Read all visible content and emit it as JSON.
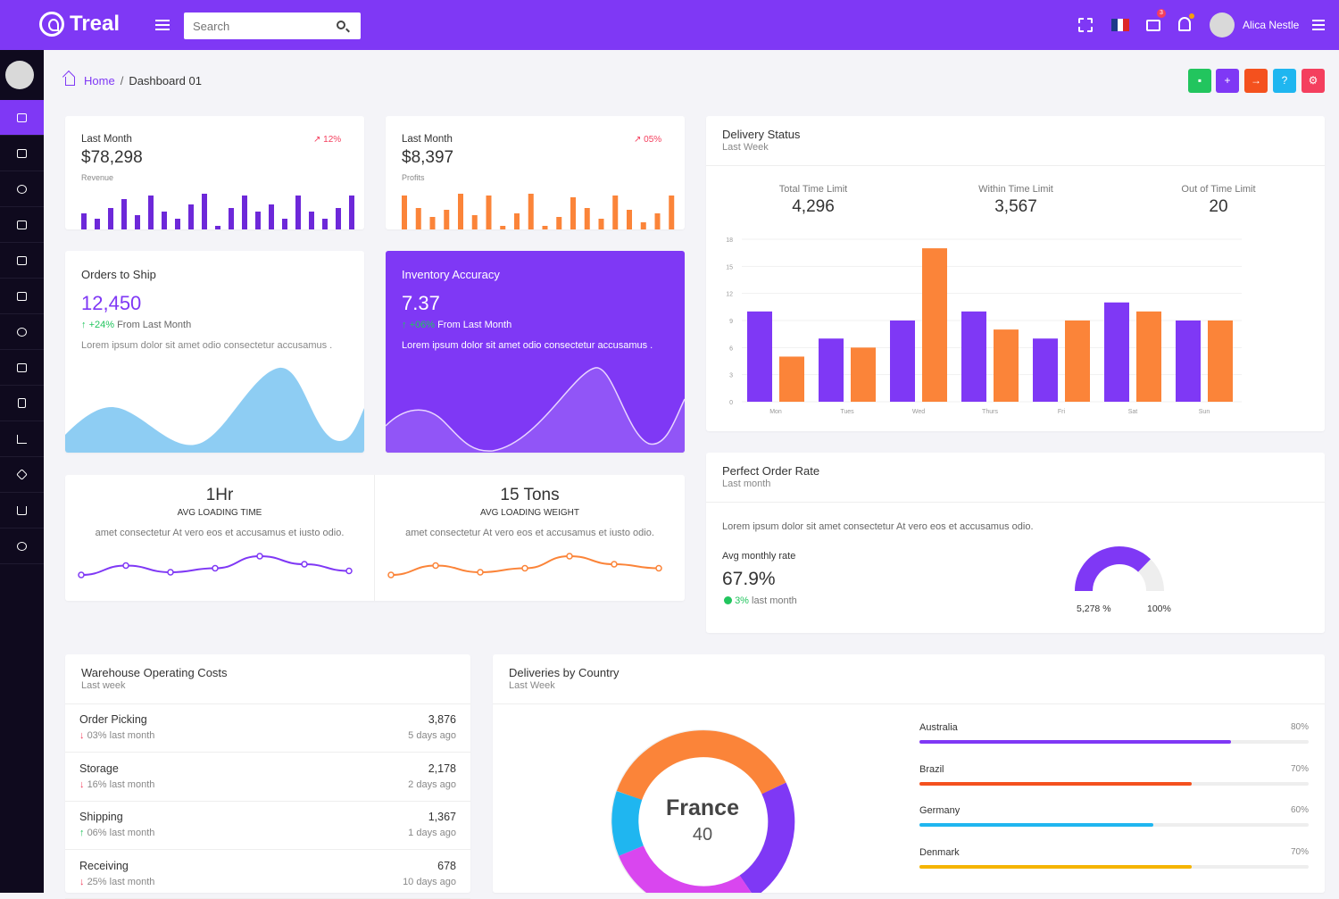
{
  "brand": {
    "name": "Treal"
  },
  "search": {
    "placeholder": "Search"
  },
  "topbar": {
    "user_name": "Alica Nestle",
    "mail_badge": "3"
  },
  "breadcrumb": {
    "home": "Home",
    "separator": "/",
    "current": "Dashboard 01"
  },
  "colors": {
    "purple": "#7f38f5",
    "orange": "#fb8439",
    "green": "#22c55e",
    "red": "#f43f5e",
    "blue": "#0ea5e9",
    "cyan": "#1fb6f0"
  },
  "revenue_card": {
    "label": "Last Month",
    "value": "$78,298",
    "sub": "Revenue",
    "trend": "12%",
    "bars": [
      0.45,
      0.3,
      0.6,
      0.85,
      0.4,
      0.95,
      0.5,
      0.3,
      0.7,
      1,
      0.1,
      0.6,
      0.95,
      0.5,
      0.7,
      0.3,
      0.95,
      0.5,
      0.3,
      0.6,
      0.95
    ]
  },
  "profit_card": {
    "label": "Last Month",
    "value": "$8,397",
    "sub": "Profits",
    "trend": "05%",
    "bars": [
      0.95,
      0.6,
      0.35,
      0.55,
      1,
      0.4,
      0.95,
      0.1,
      0.45,
      1,
      0.1,
      0.35,
      0.9,
      0.6,
      0.3,
      0.95,
      0.55,
      0.2,
      0.45,
      0.95
    ]
  },
  "orders_card": {
    "title": "Orders to Ship",
    "value": "12,450",
    "change": "+24%",
    "change_label": "From Last Month",
    "text": "Lorem ipsum dolor sit amet odio consectetur accusamus ."
  },
  "inventory_card": {
    "title": "Inventory Accuracy",
    "value": "7.37",
    "change": "+06%",
    "change_label": "From Last Month",
    "text": "Lorem ipsum dolor sit amet odio consectetur accusamus ."
  },
  "loading_time": {
    "value": "1Hr",
    "label": "AVG LOADING TIME",
    "text": "amet consectetur At vero eos et accusamus et iusto odio.",
    "points": [
      0.1,
      0.45,
      0.2,
      0.35,
      0.8,
      0.5,
      0.25
    ]
  },
  "loading_weight": {
    "value": "15 Tons",
    "label": "AVG LOADING WEIGHT",
    "text": "amet consectetur At vero eos et accusamus et iusto odio.",
    "points": [
      0.1,
      0.45,
      0.2,
      0.35,
      0.8,
      0.5,
      0.35
    ]
  },
  "delivery_status": {
    "title": "Delivery Status",
    "subtitle": "Last Week",
    "stats": [
      {
        "label": "Total Time Limit",
        "value": "4,296"
      },
      {
        "label": "Within Time Limit",
        "value": "3,567"
      },
      {
        "label": "Out of Time Limit",
        "value": "20"
      }
    ]
  },
  "chart_data": {
    "type": "bar",
    "categories": [
      "Mon",
      "Tues",
      "Wed",
      "Thurs",
      "Fri",
      "Sat",
      "Sun"
    ],
    "series": [
      {
        "color": "#7f38f5",
        "values": [
          10,
          7,
          9,
          10,
          7,
          11,
          9
        ]
      },
      {
        "color": "#fb8439",
        "values": [
          5,
          6,
          17,
          8,
          9,
          10,
          9
        ]
      }
    ],
    "yticks": [
      "0",
      "3",
      "6",
      "9",
      "12",
      "15",
      "18"
    ],
    "ylim": [
      0,
      18
    ]
  },
  "perfect_order": {
    "title": "Perfect Order Rate",
    "subtitle": "Last month",
    "text": "Lorem ipsum dolor sit amet consectetur At vero eos et accusamus odio.",
    "avg_label": "Avg monthly rate",
    "value": "67.9%",
    "change": "3%",
    "change_label": "last month",
    "gauge_left": "5,278 %",
    "gauge_right": "100%",
    "gauge_fraction": 0.679
  },
  "warehouse": {
    "title": "Warehouse Operating Costs",
    "subtitle": "Last week",
    "rows": [
      {
        "name": "Order Picking",
        "change": "03% last month",
        "dir": "down",
        "value": "3,876",
        "time": "5 days ago"
      },
      {
        "name": "Storage",
        "change": "16% last month",
        "dir": "down",
        "value": "2,178",
        "time": "2 days ago"
      },
      {
        "name": "Shipping",
        "change": "06% last month",
        "dir": "up",
        "value": "1,367",
        "time": "1 days ago"
      },
      {
        "name": "Receiving",
        "change": "25% last month",
        "dir": "down",
        "value": "678",
        "time": "10 days ago"
      }
    ]
  },
  "deliveries_country": {
    "title": "Deliveries by Country",
    "subtitle": "Last Week",
    "donut_label": "France",
    "donut_value": "40",
    "countries": [
      {
        "name": "Australia",
        "percent": "80%",
        "fraction": 0.8,
        "color": "#7f38f5"
      },
      {
        "name": "Brazil",
        "percent": "70%",
        "fraction": 0.7,
        "color": "#f4511e"
      },
      {
        "name": "Germany",
        "percent": "60%",
        "fraction": 0.6,
        "color": "#1fb6f0"
      },
      {
        "name": "Denmark",
        "percent": "70%",
        "fraction": 0.7,
        "color": "#f5b400"
      }
    ]
  }
}
